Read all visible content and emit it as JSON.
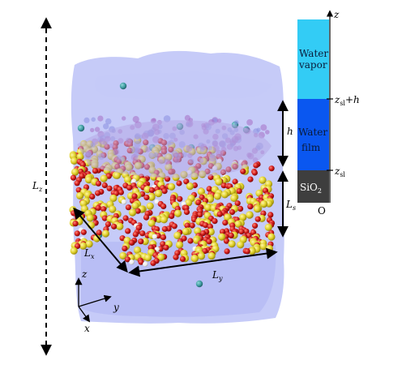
{
  "labels": {
    "Lz": "L",
    "Lz_sub": "z",
    "Lx": "L",
    "Lx_sub": "x",
    "Ly": "L",
    "Ly_sub": "y",
    "Ls": "L",
    "Ls_sub": "s",
    "h": "h",
    "axis_z": "z",
    "axis_y": "y",
    "axis_x": "x"
  },
  "layer_bar": {
    "z_axis_label": "z",
    "top_tick": "z",
    "top_tick_sub": "sl",
    "top_tick_suffix": "+h",
    "bottom_tick": "z",
    "bottom_tick_sub": "sl",
    "origin": "O",
    "vapor_line1": "Water",
    "vapor_line2": "vapor",
    "film_line1": "Water",
    "film_line2": "film",
    "sio2": "SiO",
    "sio2_sub": "2"
  },
  "colors": {
    "vapor": "#33ccf5",
    "film": "#0a57f0",
    "sio2": "#3e3e3e",
    "water_cloud": "#b3b9f5",
    "silicon": "#e3d832",
    "oxygen": "#d41f1f",
    "hydrogen": "#ffffff",
    "vapor_molecule": "#3d9aa0"
  }
}
